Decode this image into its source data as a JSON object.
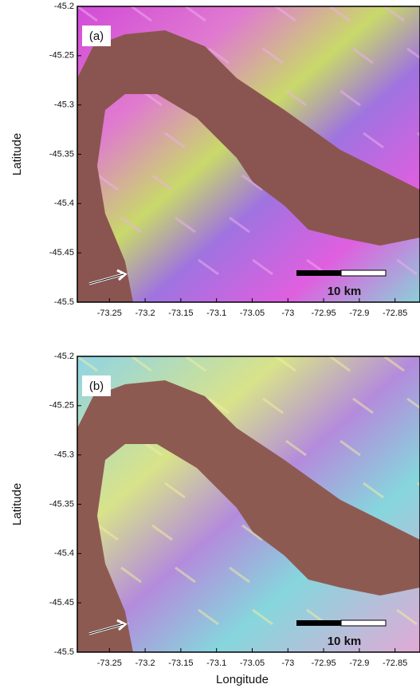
{
  "chart_data": [
    {
      "type": "map",
      "panel_label": "(a)",
      "y_label": "Latitude",
      "ylim": [
        -45.5,
        -45.2
      ],
      "yticks": [
        -45.2,
        -45.25,
        -45.3,
        -45.35,
        -45.4,
        -45.45,
        -45.5
      ],
      "xlim": [
        -73.295,
        -72.815
      ],
      "xticks": [
        -73.25,
        -73.2,
        -73.15,
        -73.1,
        -73.05,
        -73,
        -72.95,
        -72.9,
        -72.85
      ],
      "scale_bar": "10 km"
    },
    {
      "type": "map",
      "panel_label": "(b)",
      "y_label": "Latitude",
      "x_label": "Longitude",
      "ylim": [
        -45.5,
        -45.2
      ],
      "yticks": [
        -45.2,
        -45.25,
        -45.3,
        -45.35,
        -45.4,
        -45.45,
        -45.5
      ],
      "xlim": [
        -73.295,
        -72.815
      ],
      "xticks": [
        -73.25,
        -73.2,
        -73.15,
        -73.1,
        -73.05,
        -73,
        -72.95,
        -72.9,
        -72.85
      ],
      "scale_bar": "10 km"
    }
  ]
}
